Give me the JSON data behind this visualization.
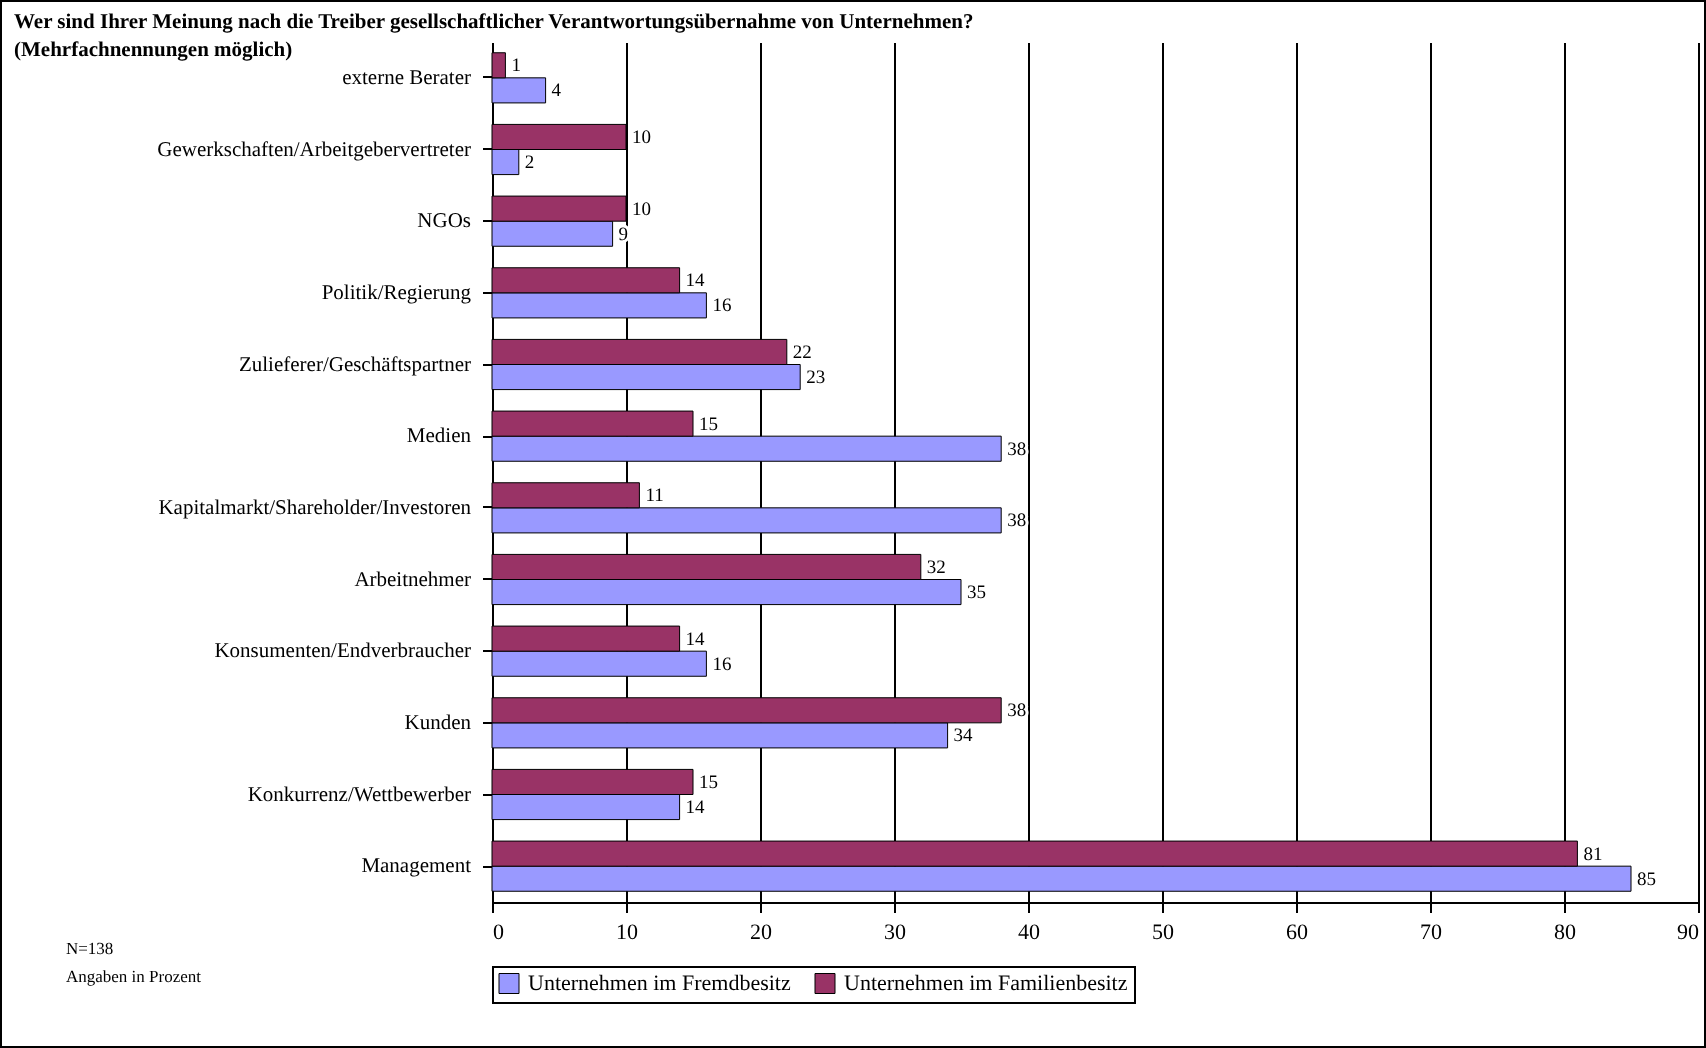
{
  "chart_data": {
    "type": "bar",
    "orientation": "horizontal",
    "title": "Wer sind Ihrer Meinung nach die Treiber gesellschaftlicher Verantwortungsübernahme von Unternehmen?",
    "subtitle": "(Mehrfachnennungen möglich)",
    "categories": [
      "externe Berater",
      "Gewerkschaften/Arbeitgebervertreter",
      "NGOs",
      "Politik/Regierung",
      "Zulieferer/Geschäftspartner",
      "Medien",
      "Kapitalmarkt/Shareholder/Investoren",
      "Arbeitnehmer",
      "Konsumenten/Endverbraucher",
      "Kunden",
      "Konkurrenz/Wettbewerber",
      "Management"
    ],
    "series": [
      {
        "name": "Unternehmen im Fremdbesitz",
        "color": "#9999ff",
        "values": [
          4,
          2,
          9,
          16,
          23,
          38,
          38,
          35,
          16,
          34,
          14,
          85
        ]
      },
      {
        "name": "Unternehmen im Familienbesitz",
        "color": "#993366",
        "values": [
          1,
          10,
          10,
          14,
          22,
          15,
          11,
          32,
          14,
          38,
          15,
          81
        ]
      }
    ],
    "xlim": [
      0,
      90
    ],
    "xticks": [
      0,
      10,
      20,
      30,
      40,
      50,
      60,
      70,
      80,
      90
    ],
    "grid": "x",
    "legend": "bottom",
    "data_labels": true,
    "annotations": [
      "N=138",
      "Angaben in Prozent"
    ]
  }
}
